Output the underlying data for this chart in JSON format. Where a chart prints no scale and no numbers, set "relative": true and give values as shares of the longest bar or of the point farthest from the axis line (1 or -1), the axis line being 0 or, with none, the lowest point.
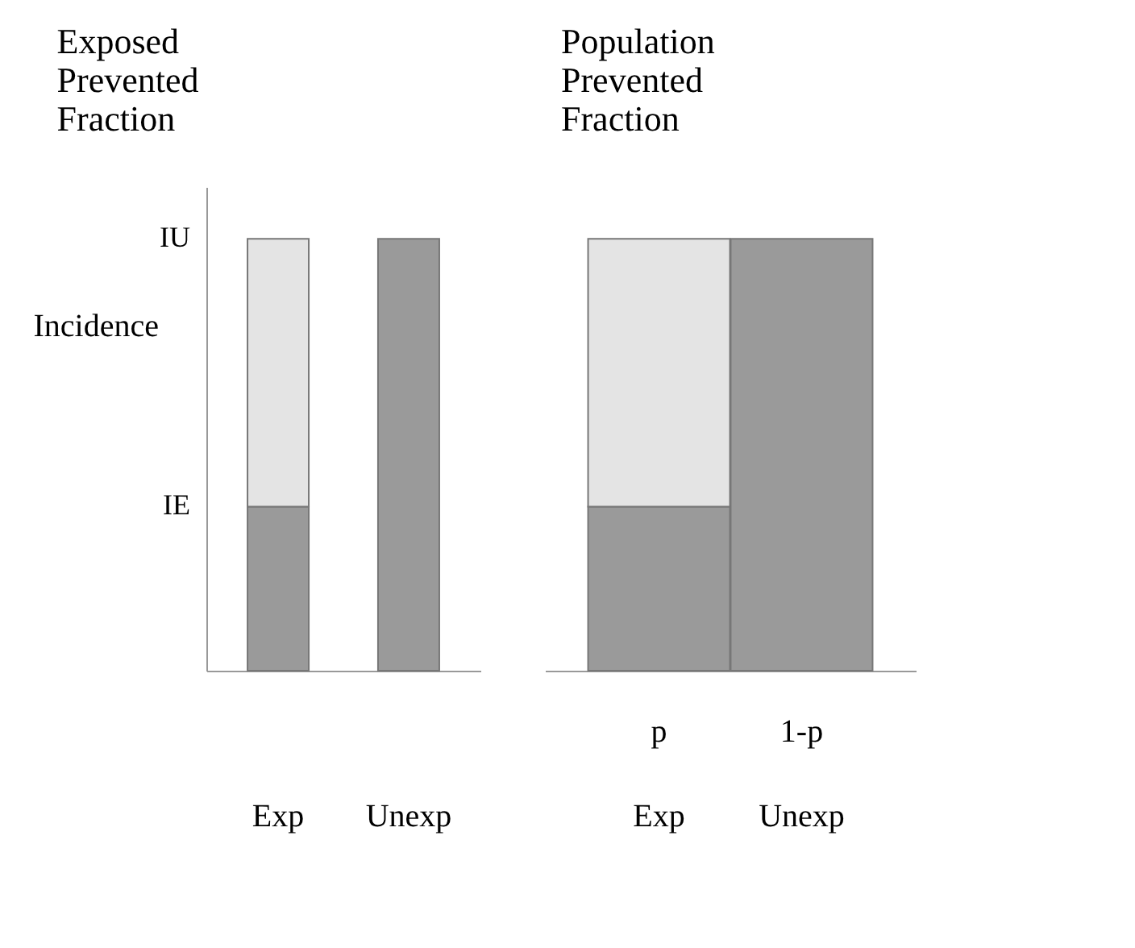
{
  "chart_data": [
    {
      "type": "bar",
      "title": "Exposed Prevented Fraction",
      "ylabel": "Incidence",
      "categories": [
        "Exp",
        "Unexp"
      ],
      "stacked": true,
      "relative": true,
      "series": [
        {
          "color": "#9a9a9a",
          "values": [
            0.38,
            1.0
          ]
        },
        {
          "color": "#e4e4e4",
          "values": [
            0.62,
            null
          ]
        }
      ],
      "grid": false,
      "annotations": [
        "IU",
        "IE"
      ]
    },
    {
      "type": "bar",
      "title": "Population Prevented Fraction",
      "categories": [
        "Exp",
        "Unexp"
      ],
      "stacked": true,
      "relative": true,
      "series": [
        {
          "color": "#9a9a9a",
          "values": [
            0.38,
            1.0
          ]
        },
        {
          "color": "#e4e4e4",
          "values": [
            0.62,
            null
          ]
        }
      ],
      "tick_labels": "x",
      "grid": false,
      "annotations": [
        "p",
        "1-p"
      ]
    }
  ]
}
